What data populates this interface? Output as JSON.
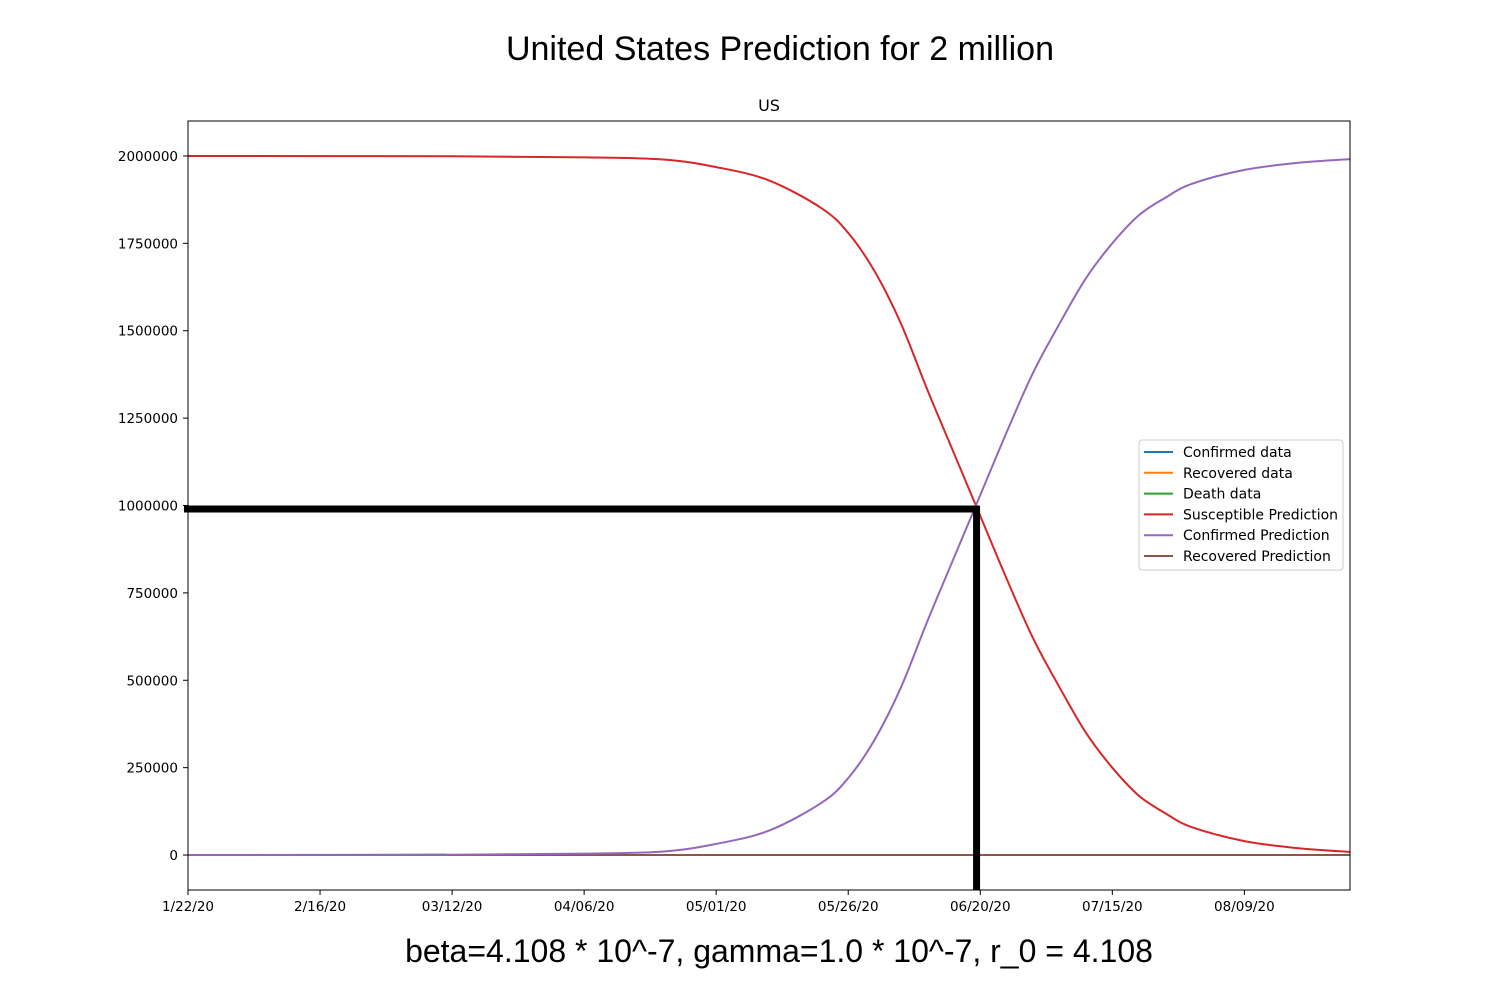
{
  "figure": {
    "suptitle": "United States Prediction for 2 million",
    "caption": "beta=4.108 * 10^-7, gamma=1.0 * 10^-7, r_0 = 4.108"
  },
  "chart_data": {
    "type": "line",
    "title": "US",
    "xlabel": "",
    "ylabel": "",
    "x_tick_labels": [
      "1/22/20",
      "2/16/20",
      "03/12/20",
      "04/06/20",
      "05/01/20",
      "05/26/20",
      "06/20/20",
      "07/15/20",
      "08/09/20"
    ],
    "x_tick_days": [
      0,
      25,
      50,
      75,
      100,
      125,
      150,
      175,
      200
    ],
    "x_range_days": [
      0,
      220
    ],
    "y_ticks": [
      0,
      250000,
      500000,
      750000,
      1000000,
      1250000,
      1500000,
      1750000,
      2000000
    ],
    "y_tick_labels": [
      "0",
      "250000",
      "500000",
      "750000",
      "1000000",
      "1250000",
      "1500000",
      "1750000",
      "2000000"
    ],
    "ylim": [
      -100000,
      2100000
    ],
    "grid": false,
    "legend_position": "center-right",
    "series": [
      {
        "name": "Confirmed data",
        "color": "#1f77b4",
        "x_days": [
          0,
          20,
          40,
          49
        ],
        "values": [
          1,
          15,
          500,
          1300
        ]
      },
      {
        "name": "Recovered data",
        "color": "#ff7f0e",
        "x_days": [
          0,
          20,
          40,
          49
        ],
        "values": [
          0,
          3,
          7,
          15
        ]
      },
      {
        "name": "Death data",
        "color": "#2ca02c",
        "x_days": [
          0,
          20,
          40,
          49
        ],
        "values": [
          0,
          0,
          20,
          40
        ]
      },
      {
        "name": "Susceptible Prediction",
        "color": "#d62728",
        "x_days": [
          0,
          50,
          75,
          90,
          100,
          110,
          120,
          125,
          130,
          135,
          140,
          145,
          150,
          155,
          160,
          165,
          170,
          175,
          180,
          185,
          190,
          200,
          210,
          220
        ],
        "values": [
          2000000,
          1999000,
          1996000,
          1990000,
          1968000,
          1930000,
          1850000,
          1780000,
          1670000,
          1520000,
          1330000,
          1150000,
          970000,
          790000,
          620000,
          480000,
          350000,
          250000,
          170000,
          120000,
          80000,
          40000,
          20000,
          9000
        ]
      },
      {
        "name": "Confirmed Prediction",
        "color": "#9467bd",
        "x_days": [
          0,
          50,
          75,
          90,
          100,
          110,
          120,
          125,
          130,
          135,
          140,
          145,
          150,
          155,
          160,
          165,
          170,
          175,
          180,
          185,
          190,
          200,
          210,
          220
        ],
        "values": [
          0,
          1000,
          4000,
          10000,
          32000,
          70000,
          150000,
          220000,
          330000,
          480000,
          670000,
          850000,
          1030000,
          1210000,
          1380000,
          1520000,
          1650000,
          1750000,
          1830000,
          1880000,
          1920000,
          1960000,
          1980000,
          1991000
        ]
      },
      {
        "name": "Recovered Prediction",
        "color": "#8c564b",
        "x_days": [
          0,
          110,
          220
        ],
        "values": [
          0,
          0,
          0
        ]
      }
    ],
    "annotations": {
      "horizontal_marker": {
        "y": 990000,
        "x_from_day": 0,
        "x_to_day": 149.3,
        "color": "#000000"
      },
      "vertical_marker": {
        "x_day": 149.3,
        "y_from": 990000,
        "y_to": -100000,
        "color": "#000000"
      }
    }
  }
}
